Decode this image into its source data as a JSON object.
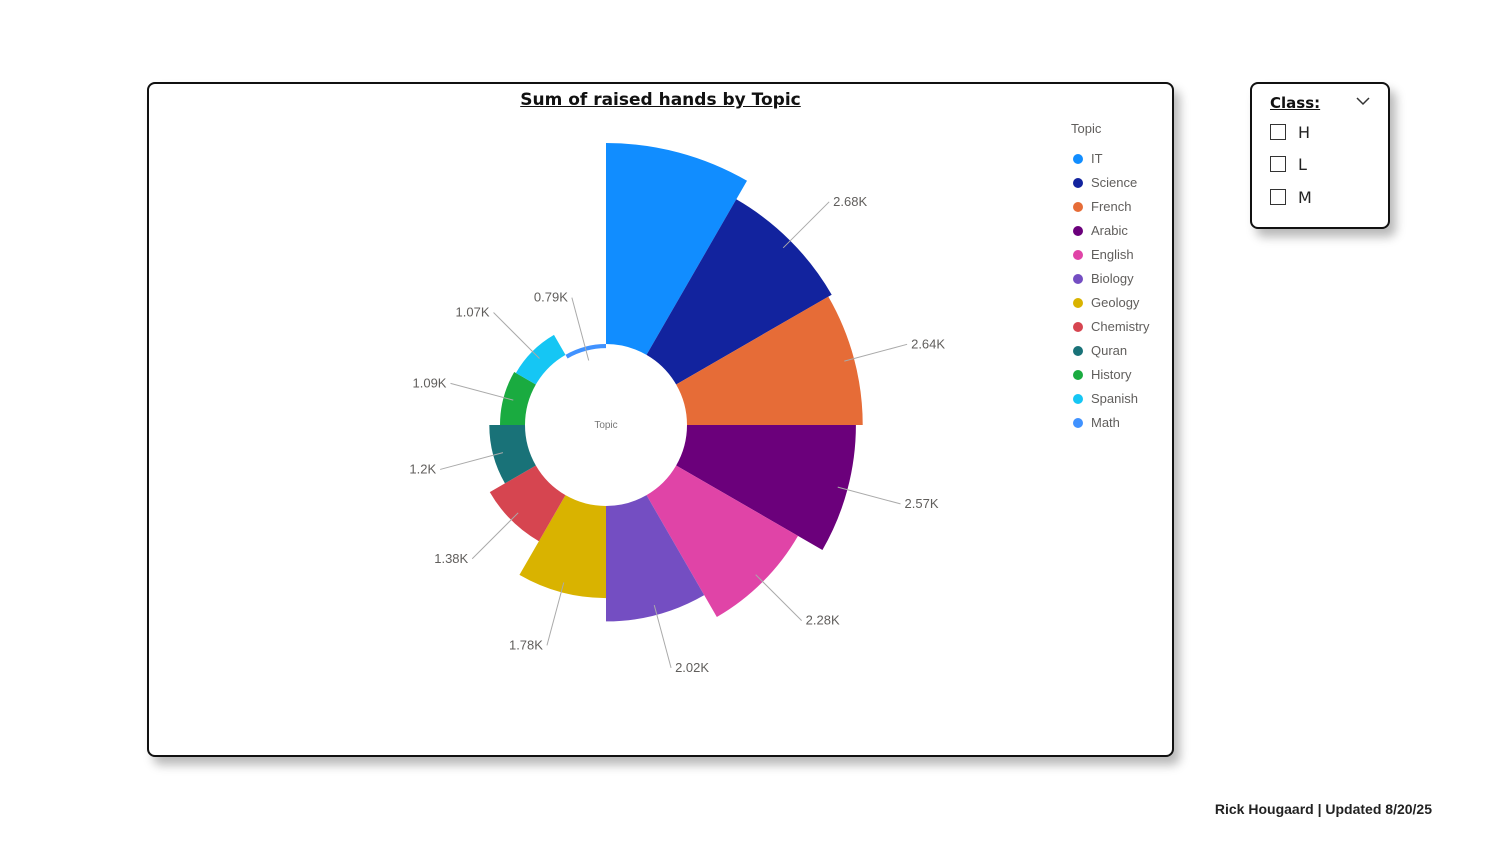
{
  "chart_data": {
    "type": "pie",
    "variant": "rose-donut",
    "title": "Sum of raised hands by Topic",
    "center_label": "Topic",
    "legend_title": "Topic",
    "legend_position": "right",
    "categories": [
      "IT",
      "Science",
      "French",
      "Arabic",
      "English",
      "Biology",
      "Geology",
      "Chemistry",
      "Quran",
      "History",
      "Spanish",
      "Math"
    ],
    "values": [
      2.9,
      2.68,
      2.64,
      2.57,
      2.28,
      2.02,
      1.78,
      1.38,
      1.2,
      1.09,
      1.07,
      0.79
    ],
    "data_labels": [
      "",
      "2.68K",
      "2.64K",
      "2.57K",
      "2.28K",
      "2.02K",
      "1.78K",
      "1.38K",
      "1.2K",
      "1.09K",
      "1.07K",
      "0.79K"
    ],
    "unit": "K",
    "colors": [
      "#118DFF",
      "#12239E",
      "#E66C37",
      "#6B007B",
      "#E044A7",
      "#744EC2",
      "#D9B300",
      "#D64550",
      "#197278",
      "#1AAB40",
      "#15C6F4",
      "#4092FF"
    ]
  },
  "slicer": {
    "title": "Class:",
    "options": [
      "H",
      "L",
      "M"
    ]
  },
  "footer": "Rick Hougaard | Updated 8/20/25"
}
